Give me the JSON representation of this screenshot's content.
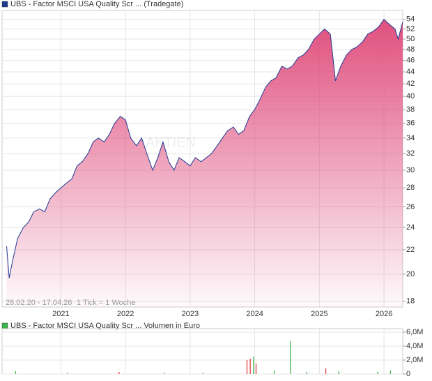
{
  "chart_data": [
    {
      "type": "area",
      "legend": "UBS - Factor MSCI USA Quality Scr ... (Tradegate)",
      "legend_color": "#1f3a93",
      "period": "28.02.20 - 17.04.26",
      "tick_note": "1 Tick = 1 Woche",
      "watermark": "AKTIEN",
      "log": true,
      "grid": true,
      "x": [
        2020.16,
        2020.2,
        2020.25,
        2020.33,
        2020.42,
        2020.5,
        2020.58,
        2020.67,
        2020.75,
        2020.83,
        2020.92,
        2021.0,
        2021.08,
        2021.17,
        2021.25,
        2021.33,
        2021.42,
        2021.5,
        2021.58,
        2021.67,
        2021.75,
        2021.83,
        2021.92,
        2022.0,
        2022.08,
        2022.17,
        2022.25,
        2022.33,
        2022.42,
        2022.5,
        2022.58,
        2022.67,
        2022.75,
        2022.83,
        2022.92,
        2023.0,
        2023.08,
        2023.17,
        2023.25,
        2023.33,
        2023.42,
        2023.5,
        2023.58,
        2023.67,
        2023.75,
        2023.83,
        2023.92,
        2024.0,
        2024.08,
        2024.17,
        2024.25,
        2024.33,
        2024.42,
        2024.5,
        2024.58,
        2024.67,
        2024.75,
        2024.83,
        2024.92,
        2025.0,
        2025.08,
        2025.17,
        2025.25,
        2025.33,
        2025.42,
        2025.5,
        2025.58,
        2025.67,
        2025.75,
        2025.83,
        2025.92,
        2026.0,
        2026.08,
        2026.17,
        2026.22,
        2026.29
      ],
      "series": [
        {
          "name": "UBS - Factor MSCI USA Quality Scr ...",
          "color": "#1f3a93",
          "fill": "#e0507f",
          "values": [
            22.3,
            19.7,
            21,
            23,
            24,
            24.5,
            25.5,
            25.8,
            25.5,
            26.8,
            27.5,
            28,
            28.5,
            29,
            30.5,
            31,
            32,
            33.5,
            34,
            33.5,
            34.5,
            36,
            37,
            36.5,
            34,
            33,
            34,
            32,
            30,
            31.5,
            33.5,
            31,
            30,
            31.5,
            31,
            30.5,
            31.5,
            31,
            31.5,
            32,
            33,
            34,
            35,
            35.5,
            34.5,
            35,
            37,
            38,
            39.5,
            41.5,
            42.5,
            43,
            45,
            44.5,
            45,
            46.5,
            47,
            48,
            50,
            51,
            52,
            51,
            42.5,
            45,
            47,
            48,
            48.5,
            49.5,
            51,
            51.5,
            52.5,
            54,
            53,
            52,
            50,
            53.5
          ]
        }
      ],
      "xlim": [
        2020.09,
        2026.29
      ],
      "xticks": [
        2021,
        2022,
        2023,
        2024,
        2025,
        2026
      ],
      "ylim": [
        17.6,
        55.9
      ],
      "yticks": [
        18,
        20,
        22,
        24,
        26,
        28,
        30,
        32,
        34,
        36,
        38,
        40,
        42,
        44,
        46,
        48,
        50,
        52,
        54
      ]
    },
    {
      "type": "bar",
      "legend": "UBS - Factor MSCI USA Quality Scr ... Volumen in Euro",
      "legend_color": "#3cb44b",
      "grid": true,
      "x": [
        2020.3,
        2021.1,
        2021.9,
        2022.6,
        2023.2,
        2023.88,
        2023.93,
        2023.98,
        2024.02,
        2024.3,
        2024.55,
        2024.8,
        2025.1,
        2025.3,
        2025.9,
        2026.1
      ],
      "series": [
        {
          "name": "Volumen",
          "colors": [
            "#3cb44b",
            "#3cb44b",
            "#e03030",
            "#3cb44b",
            "#3cb44b",
            "#e03030",
            "#e03030",
            "#3cb44b",
            "#e03030",
            "#3cb44b",
            "#3cb44b",
            "#3cb44b",
            "#e03030",
            "#3cb44b",
            "#3cb44b",
            "#3cb44b"
          ],
          "values": [
            400000,
            200000,
            300000,
            200000,
            150000,
            2000000,
            2200000,
            2500000,
            1500000,
            500000,
            4700000,
            300000,
            800000,
            400000,
            300000,
            500000
          ]
        }
      ],
      "xlim": [
        2020.09,
        2026.29
      ],
      "ylim": [
        0,
        6500000
      ],
      "yticks": [
        0,
        {
          "value": 2000000,
          "label": "2,0M"
        },
        {
          "value": 4000000,
          "label": "4,0M"
        },
        {
          "value": 6000000,
          "label": "6,0M"
        }
      ]
    }
  ]
}
